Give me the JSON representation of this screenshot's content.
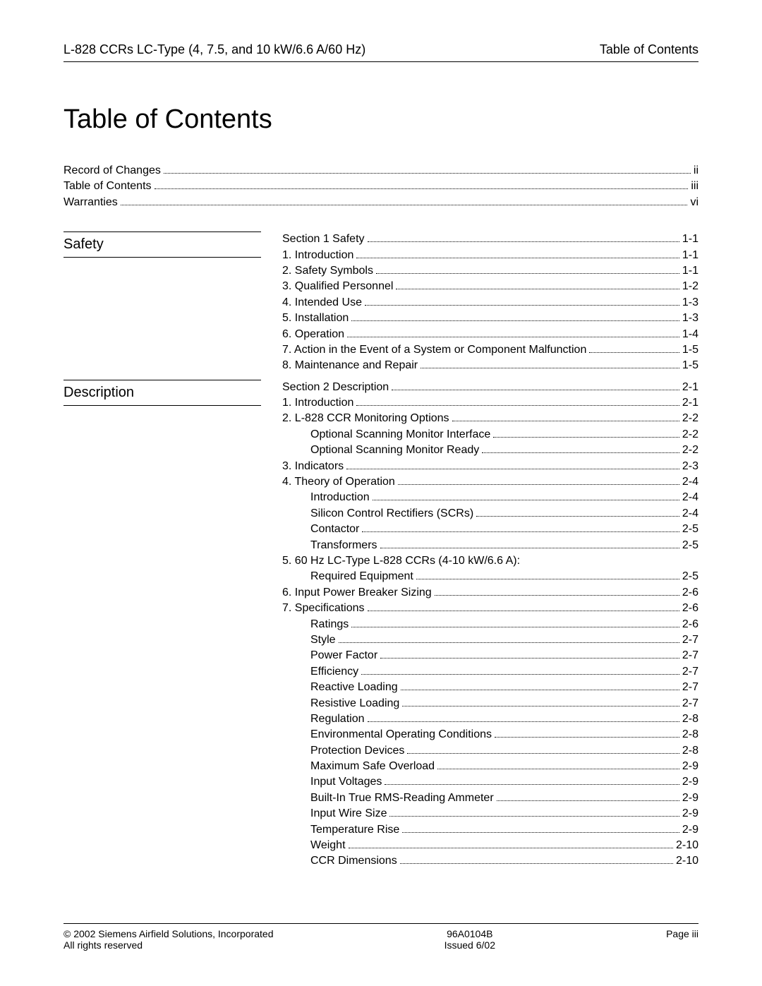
{
  "header": {
    "left": "L-828 CCRs LC-Type (4, 7.5, and 10 kW/6.6 A/60 Hz)",
    "right": "Table of Contents"
  },
  "title": "Table of Contents",
  "front_matter": [
    {
      "label": "Record of Changes",
      "page": "ii"
    },
    {
      "label": "Table of Contents",
      "page": "iii"
    },
    {
      "label": "Warranties",
      "page": "vi"
    }
  ],
  "sections": [
    {
      "name": "Safety",
      "entries": [
        {
          "label": "Section 1 Safety",
          "page": "1-1",
          "indent": 0
        },
        {
          "label": "1. Introduction",
          "page": "1-1",
          "indent": 0
        },
        {
          "label": "2. Safety Symbols",
          "page": "1-1",
          "indent": 0
        },
        {
          "label": "3. Qualified Personnel",
          "page": "1-2",
          "indent": 0
        },
        {
          "label": "4. Intended Use",
          "page": "1-3",
          "indent": 0
        },
        {
          "label": "5. Installation",
          "page": "1-3",
          "indent": 0
        },
        {
          "label": "6. Operation",
          "page": "1-4",
          "indent": 0
        },
        {
          "label": "7. Action in the Event of a System or Component Malfunction",
          "page": "1-5",
          "indent": 0
        },
        {
          "label": "8. Maintenance and Repair",
          "page": "1-5",
          "indent": 0
        }
      ]
    },
    {
      "name": "Description",
      "entries": [
        {
          "label": "Section 2 Description",
          "page": "2-1",
          "indent": 0
        },
        {
          "label": "1. Introduction",
          "page": "2-1",
          "indent": 0
        },
        {
          "label": "2. L-828 CCR Monitoring Options",
          "page": "2-2",
          "indent": 0
        },
        {
          "label": "Optional Scanning Monitor Interface",
          "page": "2-2",
          "indent": 1
        },
        {
          "label": "Optional Scanning Monitor Ready",
          "page": "2-2",
          "indent": 1
        },
        {
          "label": "3. Indicators",
          "page": "2-3",
          "indent": 0
        },
        {
          "label": "4. Theory of Operation",
          "page": "2-4",
          "indent": 0
        },
        {
          "label": "Introduction",
          "page": "2-4",
          "indent": 1
        },
        {
          "label": "Silicon Control Rectifiers (SCRs)",
          "page": "2-4",
          "indent": 1
        },
        {
          "label": "Contactor",
          "page": "2-5",
          "indent": 1
        },
        {
          "label": "Transformers",
          "page": "2-5",
          "indent": 1
        },
        {
          "label": "5. 60 Hz LC-Type L-828 CCRs (4-10 kW/6.6 A):",
          "page": "",
          "indent": 0,
          "nodots": true
        },
        {
          "label": "Required Equipment",
          "page": "2-5",
          "indent": 1
        },
        {
          "label": "6. Input Power Breaker Sizing",
          "page": "2-6",
          "indent": 0
        },
        {
          "label": "7. Specifications",
          "page": "2-6",
          "indent": 0
        },
        {
          "label": "Ratings",
          "page": "2-6",
          "indent": 1
        },
        {
          "label": "Style",
          "page": "2-7",
          "indent": 1
        },
        {
          "label": "Power Factor",
          "page": "2-7",
          "indent": 1
        },
        {
          "label": "Efficiency",
          "page": "2-7",
          "indent": 1
        },
        {
          "label": "Reactive Loading",
          "page": "2-7",
          "indent": 1
        },
        {
          "label": "Resistive Loading",
          "page": "2-7",
          "indent": 1
        },
        {
          "label": "Regulation",
          "page": "2-8",
          "indent": 1
        },
        {
          "label": "Environmental Operating Conditions",
          "page": "2-8",
          "indent": 1
        },
        {
          "label": "Protection Devices",
          "page": "2-8",
          "indent": 1
        },
        {
          "label": "Maximum Safe Overload",
          "page": "2-9",
          "indent": 1
        },
        {
          "label": "Input Voltages",
          "page": "2-9",
          "indent": 1
        },
        {
          "label": "Built-In True RMS-Reading Ammeter",
          "page": "2-9",
          "indent": 1
        },
        {
          "label": "Input Wire Size",
          "page": "2-9",
          "indent": 1
        },
        {
          "label": "Temperature Rise",
          "page": "2-9",
          "indent": 1
        },
        {
          "label": "Weight",
          "page": "2-10",
          "indent": 1
        },
        {
          "label": "CCR Dimensions",
          "page": "2-10",
          "indent": 1
        }
      ]
    }
  ],
  "footer": {
    "left_top": "© 2002 Siemens Airfield Solutions, Incorporated",
    "left_bottom": "All rights reserved",
    "center_top": "96A0104B",
    "center_bottom": "Issued 6/02",
    "right": "Page iii"
  }
}
